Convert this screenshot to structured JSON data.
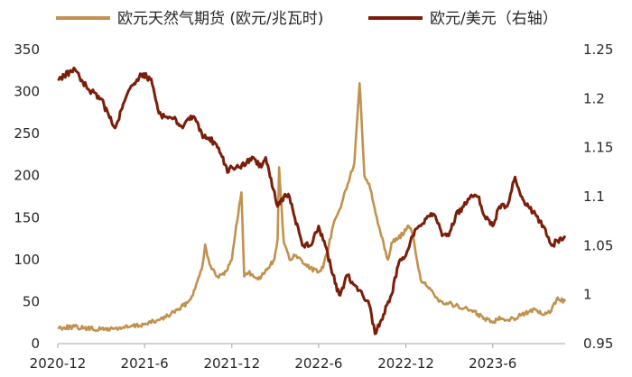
{
  "chart_data": {
    "type": "line",
    "title": "",
    "colors": {
      "gas": "#C1914E",
      "fx": "#7A1E0A",
      "axis": "#A6A6A6"
    },
    "legend": {
      "placement": "top",
      "items": [
        "欧元天然气期货 (欧元/兆瓦时)",
        "欧元/美元（右轴）"
      ]
    },
    "x_ticks": [
      "2020-12",
      "2021-6",
      "2021-12",
      "2022-6",
      "2022-12",
      "2023-6"
    ],
    "x_range": [
      "2020-12-01",
      "2023-10-31"
    ],
    "y_left": {
      "ticks": [
        "0",
        "50",
        "100",
        "150",
        "200",
        "250",
        "300",
        "350"
      ],
      "range": [
        0,
        350
      ]
    },
    "y_right": {
      "ticks": [
        "0.95",
        "1",
        "1.05",
        "1.1",
        "1.15",
        "1.2",
        "1.25"
      ],
      "range": [
        0.95,
        1.25
      ]
    },
    "series": [
      {
        "name": "欧元天然气期货 (欧元/兆瓦时)",
        "axis": "left",
        "x": [
          "2020-12-01",
          "2021-01-01",
          "2021-02-01",
          "2021-03-01",
          "2021-04-01",
          "2021-05-01",
          "2021-06-01",
          "2021-07-01",
          "2021-07-20",
          "2021-08-01",
          "2021-08-10",
          "2021-09-01",
          "2021-09-15",
          "2021-10-01",
          "2021-10-06",
          "2021-10-15",
          "2021-11-01",
          "2021-11-15",
          "2021-12-01",
          "2021-12-10",
          "2021-12-21",
          "2021-12-27",
          "2022-01-05",
          "2022-01-20",
          "2022-02-01",
          "2022-02-15",
          "2022-02-28",
          "2022-03-07",
          "2022-03-10",
          "2022-03-20",
          "2022-04-01",
          "2022-04-15",
          "2022-05-01",
          "2022-05-15",
          "2022-06-01",
          "2022-06-10",
          "2022-06-20",
          "2022-07-01",
          "2022-07-15",
          "2022-08-01",
          "2022-08-15",
          "2022-08-26",
          "2022-09-05",
          "2022-09-15",
          "2022-10-01",
          "2022-10-15",
          "2022-10-24",
          "2022-11-01",
          "2022-11-15",
          "2022-12-01",
          "2022-12-07",
          "2022-12-15",
          "2023-01-01",
          "2023-01-15",
          "2023-02-01",
          "2023-02-15",
          "2023-03-01",
          "2023-03-15",
          "2023-04-01",
          "2023-04-15",
          "2023-05-01",
          "2023-05-15",
          "2023-06-01",
          "2023-06-15",
          "2023-07-01",
          "2023-07-15",
          "2023-08-01",
          "2023-08-15",
          "2023-09-01",
          "2023-09-15",
          "2023-10-01",
          "2023-10-15",
          "2023-10-31"
        ],
        "values": [
          19,
          20,
          18,
          17,
          18,
          20,
          23,
          28,
          33,
          38,
          40,
          50,
          65,
          95,
          118,
          95,
          80,
          82,
          100,
          140,
          180,
          80,
          85,
          78,
          80,
          90,
          100,
          125,
          210,
          120,
          100,
          105,
          95,
          90,
          85,
          90,
          110,
          140,
          160,
          190,
          215,
          310,
          200,
          190,
          150,
          120,
          100,
          120,
          125,
          135,
          140,
          130,
          76,
          68,
          55,
          50,
          48,
          45,
          42,
          40,
          35,
          30,
          25,
          32,
          28,
          30,
          35,
          38,
          40,
          34,
          38,
          55,
          50
        ]
      },
      {
        "name": "欧元/美元（右轴）",
        "axis": "right",
        "x": [
          "2020-12-01",
          "2021-01-06",
          "2021-02-01",
          "2021-03-01",
          "2021-03-31",
          "2021-04-15",
          "2021-05-01",
          "2021-05-25",
          "2021-06-15",
          "2021-07-01",
          "2021-07-20",
          "2021-08-01",
          "2021-08-20",
          "2021-09-01",
          "2021-09-15",
          "2021-10-01",
          "2021-10-15",
          "2021-11-01",
          "2021-11-24",
          "2021-12-01",
          "2021-12-15",
          "2022-01-01",
          "2022-01-15",
          "2022-02-01",
          "2022-02-10",
          "2022-03-07",
          "2022-03-20",
          "2022-04-01",
          "2022-04-28",
          "2022-05-15",
          "2022-06-01",
          "2022-06-15",
          "2022-07-01",
          "2022-07-14",
          "2022-08-01",
          "2022-08-15",
          "2022-09-01",
          "2022-09-15",
          "2022-09-27",
          "2022-10-15",
          "2022-11-01",
          "2022-11-15",
          "2022-12-01",
          "2022-12-15",
          "2023-01-01",
          "2023-01-15",
          "2023-02-01",
          "2023-02-15",
          "2023-03-01",
          "2023-03-15",
          "2023-04-01",
          "2023-04-15",
          "2023-05-01",
          "2023-05-15",
          "2023-06-01",
          "2023-06-15",
          "2023-07-01",
          "2023-07-18",
          "2023-08-01",
          "2023-08-15",
          "2023-09-01",
          "2023-09-15",
          "2023-10-03",
          "2023-10-15",
          "2023-10-31"
        ],
        "values": [
          1.22,
          1.23,
          1.21,
          1.2,
          1.17,
          1.19,
          1.21,
          1.225,
          1.22,
          1.185,
          1.18,
          1.18,
          1.17,
          1.18,
          1.18,
          1.16,
          1.16,
          1.15,
          1.125,
          1.13,
          1.13,
          1.135,
          1.14,
          1.13,
          1.14,
          1.09,
          1.1,
          1.1,
          1.05,
          1.05,
          1.07,
          1.05,
          1.02,
          1.0,
          1.02,
          1.01,
          1.0,
          0.99,
          0.96,
          0.98,
          1.0,
          1.03,
          1.04,
          1.06,
          1.07,
          1.08,
          1.08,
          1.06,
          1.06,
          1.08,
          1.09,
          1.1,
          1.1,
          1.08,
          1.07,
          1.09,
          1.09,
          1.12,
          1.1,
          1.09,
          1.08,
          1.07,
          1.05,
          1.055,
          1.06
        ]
      }
    ]
  }
}
